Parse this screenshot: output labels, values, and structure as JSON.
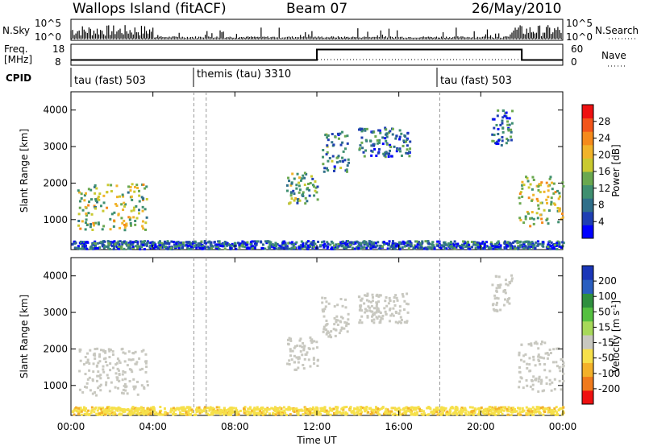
{
  "header": {
    "station": "Wallops Island (fitACF)",
    "beam": "Beam 07",
    "date": "26/May/2010"
  },
  "labels": {
    "nsky": "N.Sky",
    "nsearch": "N.Search",
    "freq_line1": "Freq.",
    "freq_line2": "[MHz]",
    "nave": "Nave",
    "cpid": "CPID",
    "slant_range": "Slant Range [km]",
    "time_axis": "Time UT",
    "power_cb": "Power [dB]",
    "velocity_cb_prefix": "Velocity [m s",
    "velocity_cb_sup": "-1",
    "velocity_cb_suffix": "]"
  },
  "noise_axis": {
    "top": "10^5",
    "bottom": "10^0"
  },
  "freq_axis": {
    "left_ticks": [
      "18",
      "8"
    ],
    "right_ticks": [
      "60",
      "0"
    ]
  },
  "cpid_segments": [
    {
      "label": "tau (fast) 503",
      "start_h": 0.0
    },
    {
      "label": "themis (tau) 3310",
      "start_h": 6.0
    },
    {
      "label": "tau (fast) 503",
      "start_h": 18.0
    }
  ],
  "chart_data": [
    {
      "type": "heatmap",
      "name": "power",
      "x_ticks": [
        "00:00",
        "04:00",
        "08:00",
        "12:00",
        "16:00",
        "20:00",
        "00:00"
      ],
      "xlim_hours": [
        0,
        24
      ],
      "y_ticks": [
        1000,
        2000,
        3000,
        4000
      ],
      "ylim_km": [
        180,
        4500
      ],
      "colorbar": {
        "label": "Power [dB]",
        "ticks": [
          4,
          8,
          12,
          16,
          20,
          24,
          28
        ],
        "colors": [
          "#0000ff",
          "#1f3fb3",
          "#2f6f8a",
          "#3f8f70",
          "#6aa84f",
          "#c9c92f",
          "#f1b32a",
          "#f58a1c",
          "#f2551a",
          "#ee1111"
        ]
      },
      "regions": [
        {
          "t0": 0.3,
          "t1": 3.7,
          "r0": 700,
          "r1": 2000,
          "val": 15
        },
        {
          "t0": 10.5,
          "t1": 12.0,
          "r0": 1400,
          "r1": 2300,
          "val": 12
        },
        {
          "t0": 12.2,
          "t1": 13.5,
          "r0": 2300,
          "r1": 3400,
          "val": 9
        },
        {
          "t0": 14.0,
          "t1": 16.5,
          "r0": 2700,
          "r1": 3500,
          "val": 8
        },
        {
          "t0": 21.8,
          "t1": 24.0,
          "r0": 800,
          "r1": 2200,
          "val": 16
        },
        {
          "t0": 20.5,
          "t1": 21.5,
          "r0": 3000,
          "r1": 4000,
          "val": 8
        },
        {
          "t0": 0.0,
          "t1": 24.0,
          "r0": 180,
          "r1": 400,
          "val": 6
        }
      ]
    },
    {
      "type": "heatmap",
      "name": "velocity",
      "x_ticks": [
        "00:00",
        "04:00",
        "08:00",
        "12:00",
        "16:00",
        "20:00",
        "00:00"
      ],
      "xlim_hours": [
        0,
        24
      ],
      "y_ticks": [
        1000,
        2000,
        3000,
        4000
      ],
      "ylim_km": [
        180,
        4500
      ],
      "colorbar": {
        "label": "Velocity [m s-1]",
        "ticks": [
          200,
          100,
          50,
          15,
          -15,
          -50,
          -100,
          -200
        ],
        "colors": [
          "#1a36b8",
          "#2a5fc0",
          "#2f8f3f",
          "#55c040",
          "#a7d95a",
          "#c8c8c0",
          "#f6e04a",
          "#f3b12a",
          "#f07a1c",
          "#ee1111"
        ]
      },
      "regions": [
        {
          "t0": 0.3,
          "t1": 3.7,
          "r0": 700,
          "r1": 2000,
          "val": 0
        },
        {
          "t0": 10.5,
          "t1": 12.0,
          "r0": 1400,
          "r1": 2300,
          "val": 0
        },
        {
          "t0": 12.2,
          "t1": 13.5,
          "r0": 2300,
          "r1": 3400,
          "val": 0
        },
        {
          "t0": 14.0,
          "t1": 16.5,
          "r0": 2700,
          "r1": 3500,
          "val": 0
        },
        {
          "t0": 21.8,
          "t1": 24.0,
          "r0": 800,
          "r1": 2200,
          "val": 0
        },
        {
          "t0": 20.5,
          "t1": 21.5,
          "r0": 3000,
          "r1": 4000,
          "val": 0
        },
        {
          "t0": 0.0,
          "t1": 24.0,
          "r0": 180,
          "r1": 400,
          "val": -40
        }
      ]
    }
  ],
  "freq_series": [
    {
      "t0": 0,
      "t1": 12,
      "mhz": 10.5
    },
    {
      "t0": 12,
      "t1": 22,
      "mhz": 15.5
    },
    {
      "t0": 22,
      "t1": 24,
      "mhz": 10.5
    }
  ]
}
